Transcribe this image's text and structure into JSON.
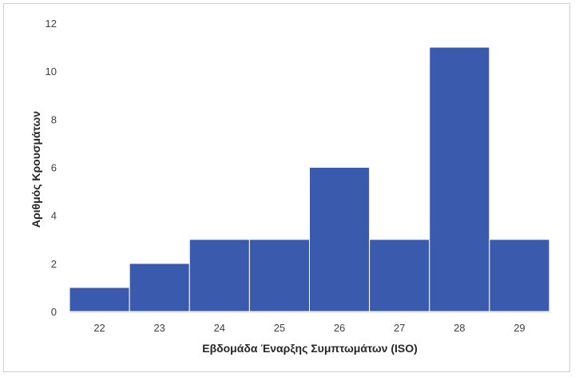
{
  "chart_data": {
    "type": "bar",
    "categories": [
      "22",
      "23",
      "24",
      "25",
      "26",
      "27",
      "28",
      "29"
    ],
    "values": [
      1,
      2,
      3,
      3,
      6,
      3,
      11,
      3
    ],
    "xlabel": "Εβδομάδα Έναρξης Συμπτωμάτων (ISO)",
    "ylabel": "Αριθμός Κρουσμάτων",
    "ylim": [
      0,
      12
    ],
    "yticks": [
      0,
      2,
      4,
      6,
      8,
      10,
      12
    ],
    "grid": false,
    "legend": "none",
    "bar_color": "#3A5BAD"
  }
}
